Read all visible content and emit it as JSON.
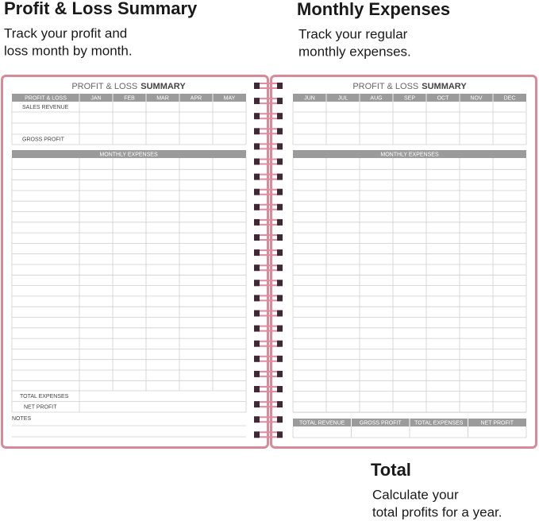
{
  "callouts": [
    {
      "title": "Profit & Loss Summary",
      "lines": [
        "Track your profit and",
        "loss month by month."
      ]
    },
    {
      "title": "Monthly Expenses",
      "lines": [
        "Track your regular",
        "monthly expenses."
      ]
    },
    {
      "title": "Total",
      "lines": [
        "Calculate your",
        "total profits for a year."
      ]
    }
  ],
  "left_page": {
    "title_light": "PROFIT & LOSS",
    "title_bold": "SUMMARY",
    "header": [
      "PROFIT & LOSS",
      "JAN",
      "FEB",
      "MAR",
      "APR",
      "MAY"
    ],
    "row_labels": [
      "SALES REVENUE",
      "GROSS PROFIT"
    ],
    "section": "MONTHLY EXPENSES",
    "footer_rows": [
      "TOTAL EXPENSES",
      "NET PROFIT"
    ],
    "notes": "NOTES"
  },
  "right_page": {
    "title_light": "PROFIT & LOSS",
    "title_bold": "SUMMARY",
    "months": [
      "JUN",
      "JUL",
      "AUG",
      "SEP",
      "OCT",
      "NOV",
      "DEC"
    ],
    "section": "MONTHLY EXPENSES",
    "totals": [
      "TOTAL REVENUE",
      "GROSS PROFIT",
      "TOTAL EXPENSES",
      "NET PROFIT"
    ]
  }
}
